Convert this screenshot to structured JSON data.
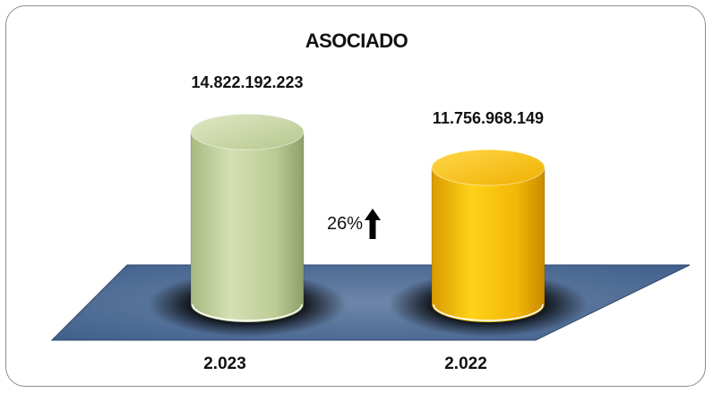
{
  "chart_data": {
    "type": "bar",
    "title": "ASOCIADO",
    "categories": [
      "2.023",
      "2.022"
    ],
    "values": [
      14822192223,
      11756968149
    ],
    "value_labels": [
      "14.822.192.223",
      "11.756.968.149"
    ],
    "ylim": [
      0,
      16000000000
    ],
    "grid": false,
    "legend": "none",
    "colors": [
      "#c3d39d",
      "#f2b705"
    ],
    "annotation": {
      "text": "26%",
      "icon": "arrow-up-icon"
    }
  }
}
